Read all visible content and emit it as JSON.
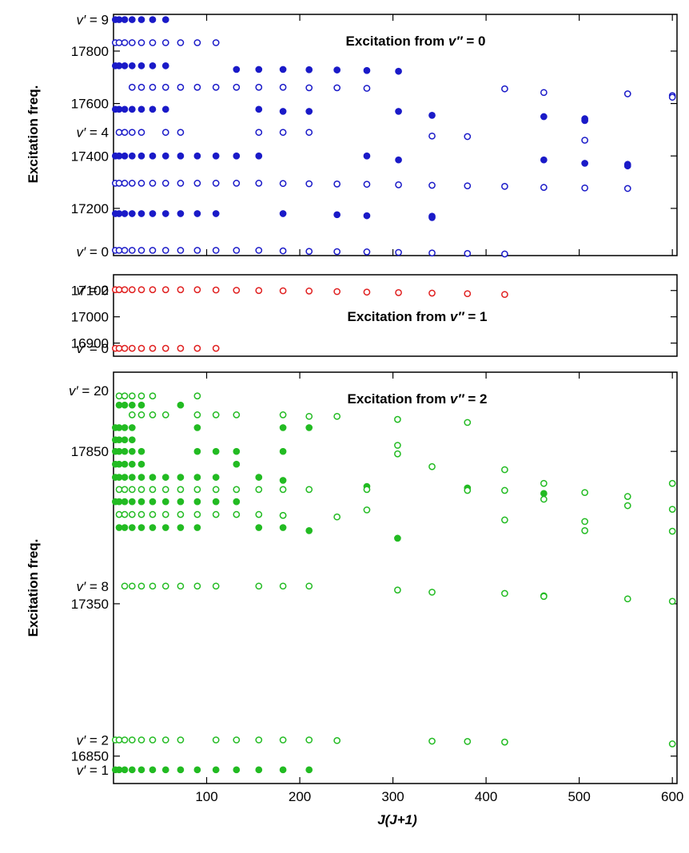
{
  "chart_data": [
    {
      "type": "scatter",
      "title": "Excitation from v″ = 0",
      "title_prefix": "Excitation from ",
      "title_var": "v″",
      "title_suffix": " = 0",
      "xlabel": "J(J+1)",
      "ylabel": "Excitation freq.",
      "xlim": [
        0,
        605
      ],
      "ylim": [
        17020,
        17940
      ],
      "yticks": [
        17200,
        17400,
        17600,
        17800
      ],
      "xticks": [
        100,
        200,
        300,
        400,
        500,
        600
      ],
      "color": "#1a1ac8",
      "level_labels": [
        {
          "text": "v′ = 9",
          "y": 17920
        },
        {
          "text": "v′ = 4",
          "y": 17490
        },
        {
          "text": "v′ = 0",
          "y": 17035
        }
      ],
      "series": [
        {
          "level": "v'=9",
          "filled": true,
          "y": 17920,
          "x": [
            2,
            6,
            12,
            20,
            30,
            42,
            56
          ]
        },
        {
          "level": "v'=8",
          "filled": false,
          "y": 17832,
          "x": [
            2,
            6,
            12,
            20,
            30,
            42,
            56,
            72,
            90,
            110
          ]
        },
        {
          "level": "v'=7",
          "filled": true,
          "y": [
            17744,
            17744,
            17744,
            17744,
            17744,
            17744,
            17744,
            17730,
            17730,
            17730,
            17729,
            17728,
            17726,
            17723
          ],
          "x": [
            2,
            6,
            12,
            20,
            30,
            42,
            56,
            132,
            156,
            182,
            210,
            240,
            272,
            306
          ]
        },
        {
          "level": "v'=6",
          "filled": false,
          "y": [
            17662,
            17662,
            17662,
            17662,
            17662,
            17662,
            17662,
            17662,
            17662,
            17662,
            17660,
            17660,
            17658,
            17656,
            17642,
            17637,
            17630,
            17624
          ],
          "x": [
            20,
            30,
            42,
            56,
            72,
            90,
            110,
            132,
            156,
            182,
            210,
            240,
            272,
            420,
            462,
            552,
            600,
            600
          ]
        },
        {
          "level": "v'=5",
          "filled": true,
          "y": [
            17578,
            17578,
            17578,
            17578,
            17578,
            17578,
            17578,
            17578,
            17570,
            17570,
            17570,
            17555,
            17550,
            17542,
            17535
          ],
          "x": [
            2,
            6,
            12,
            20,
            30,
            42,
            56,
            156,
            182,
            210,
            306,
            342,
            462,
            506,
            506
          ]
        },
        {
          "level": "v'=4",
          "filled": false,
          "y": [
            17490,
            17490,
            17490,
            17490,
            17490,
            17490,
            17490,
            17490,
            17490,
            17476,
            17474,
            17460
          ],
          "x": [
            6,
            12,
            20,
            30,
            56,
            72,
            156,
            182,
            210,
            342,
            380,
            506
          ]
        },
        {
          "level": "v'=3",
          "filled": true,
          "y": [
            17400,
            17400,
            17400,
            17400,
            17400,
            17400,
            17400,
            17400,
            17400,
            17400,
            17400,
            17400,
            17400,
            17385,
            17385,
            17372,
            17368,
            17362
          ],
          "x": [
            2,
            6,
            12,
            20,
            30,
            42,
            56,
            72,
            90,
            110,
            132,
            156,
            272,
            306,
            462,
            506,
            552,
            552
          ]
        },
        {
          "level": "v'=2",
          "filled": false,
          "y": [
            17296,
            17296,
            17296,
            17296,
            17296,
            17296,
            17296,
            17296,
            17296,
            17296,
            17296,
            17296,
            17295,
            17294,
            17293,
            17292,
            17290,
            17288,
            17286,
            17284,
            17280,
            17278,
            17276
          ],
          "x": [
            2,
            6,
            12,
            20,
            30,
            42,
            56,
            72,
            90,
            110,
            132,
            156,
            182,
            210,
            240,
            272,
            306,
            342,
            380,
            420,
            462,
            506,
            552
          ]
        },
        {
          "level": "v'=1",
          "filled": true,
          "y": [
            17180,
            17180,
            17180,
            17180,
            17180,
            17180,
            17180,
            17180,
            17180,
            17180,
            17180,
            17176,
            17172,
            17170,
            17165
          ],
          "x": [
            2,
            6,
            12,
            20,
            30,
            42,
            56,
            72,
            90,
            110,
            182,
            240,
            272,
            342,
            342
          ]
        },
        {
          "level": "v'=0",
          "filled": false,
          "y": [
            17040,
            17040,
            17040,
            17040,
            17040,
            17040,
            17040,
            17040,
            17040,
            17040,
            17040,
            17040,
            17038,
            17036,
            17035,
            17034,
            17032,
            17030,
            17028,
            17026
          ],
          "x": [
            2,
            6,
            12,
            20,
            30,
            42,
            56,
            72,
            90,
            110,
            132,
            156,
            182,
            210,
            240,
            272,
            306,
            342,
            380,
            420
          ]
        }
      ]
    },
    {
      "type": "scatter",
      "title": "Excitation from v″ = 1",
      "title_prefix": "Excitation from ",
      "title_var": "v″",
      "title_suffix": " = 1",
      "xlabel": "J(J+1)",
      "ylabel": "",
      "xlim": [
        0,
        605
      ],
      "ylim": [
        16850,
        17160
      ],
      "yticks": [
        16900,
        17000,
        17100
      ],
      "color": "#e02020",
      "level_labels": [
        {
          "text": "v′ = 2",
          "y": 17103
        },
        {
          "text": "v′ = 0",
          "y": 16880
        }
      ],
      "series": [
        {
          "level": "v'=2",
          "filled": false,
          "y": [
            17103,
            17103,
            17103,
            17103,
            17103,
            17103,
            17103,
            17103,
            17103,
            17102,
            17101,
            17100,
            17099,
            17098,
            17096,
            17094,
            17092,
            17090,
            17088,
            17085
          ],
          "x": [
            2,
            6,
            12,
            20,
            30,
            42,
            56,
            72,
            90,
            110,
            132,
            156,
            182,
            210,
            240,
            272,
            306,
            342,
            380,
            420
          ]
        },
        {
          "level": "v'=0",
          "filled": false,
          "y": 16880,
          "x": [
            2,
            6,
            12,
            20,
            30,
            42,
            56,
            72,
            90,
            110
          ]
        }
      ]
    },
    {
      "type": "scatter",
      "title": "Excitation from v″ = 2",
      "title_prefix": "Excitation from ",
      "title_var": "v″",
      "title_suffix": " = 2",
      "xlabel": "J(J+1)",
      "ylabel": "Excitation freq.",
      "xlim": [
        0,
        605
      ],
      "ylim": [
        16760,
        18110
      ],
      "yticks": [
        16850,
        17350,
        17850
      ],
      "xticks": [
        100,
        200,
        300,
        400,
        500,
        600
      ],
      "color": "#22bb22",
      "level_labels": [
        {
          "text": "v′ = 20",
          "y": 18050
        },
        {
          "text": "v′ = 8",
          "y": 17408
        },
        {
          "text": "v′ = 2",
          "y": 16903
        },
        {
          "text": "v′ = 1",
          "y": 16805
        }
      ],
      "series": [
        {
          "level": "v'=20",
          "filled": false,
          "y": [
            18032,
            18032,
            18032,
            18032,
            18032,
            18032
          ],
          "x": [
            6,
            12,
            20,
            30,
            42,
            90
          ]
        },
        {
          "level": "v'=19",
          "filled": true,
          "y": [
            18002,
            18002,
            18002,
            18002,
            18002
          ],
          "x": [
            6,
            12,
            20,
            30,
            72
          ]
        },
        {
          "level": "v'=18",
          "filled": false,
          "y": [
            17970,
            17970,
            17970,
            17970,
            17970,
            17970,
            17970,
            17970,
            17965,
            17965,
            17955,
            17945
          ],
          "x": [
            20,
            30,
            42,
            56,
            90,
            110,
            132,
            182,
            210,
            240,
            305,
            380
          ]
        },
        {
          "level": "v'=17",
          "filled": true,
          "y": [
            17928,
            17928,
            17928,
            17928,
            17928,
            17928,
            17928
          ],
          "x": [
            2,
            6,
            12,
            20,
            90,
            182,
            210
          ]
        },
        {
          "level": "v'=16",
          "filled": true,
          "y": [
            17888,
            17888,
            17888,
            17888
          ],
          "x": [
            2,
            6,
            12,
            20
          ]
        },
        {
          "level": "v'=15",
          "filled": true,
          "y": [
            17850,
            17850,
            17850,
            17850,
            17850,
            17850,
            17850,
            17850,
            17850
          ],
          "x": [
            2,
            6,
            12,
            20,
            30,
            90,
            110,
            132,
            182
          ]
        },
        {
          "level": "v'=14",
          "filled": true,
          "y": [
            17808,
            17808,
            17808,
            17808,
            17808,
            17808
          ],
          "x": [
            2,
            6,
            12,
            20,
            30,
            132
          ]
        },
        {
          "level": "v'=13",
          "filled": true,
          "y": [
            17765,
            17765,
            17765,
            17765,
            17765,
            17765,
            17765,
            17765,
            17765,
            17765,
            17765,
            17755,
            17735,
            17730,
            17712
          ],
          "x": [
            2,
            6,
            12,
            20,
            30,
            42,
            56,
            72,
            90,
            110,
            156,
            182,
            272,
            380,
            462
          ]
        },
        {
          "level": "v'=12",
          "filled": false,
          "y": [
            17725,
            17725,
            17725,
            17725,
            17725,
            17725,
            17725,
            17725,
            17725,
            17725,
            17725,
            17725,
            17725
          ],
          "x": [
            6,
            12,
            20,
            30,
            42,
            56,
            72,
            90,
            110,
            132,
            156,
            182,
            210
          ]
        },
        {
          "level": "v'=11",
          "filled": true,
          "y": [
            17685,
            17685,
            17685,
            17685,
            17685,
            17685,
            17685,
            17685,
            17685,
            17685,
            17685
          ],
          "x": [
            2,
            6,
            12,
            20,
            30,
            42,
            56,
            72,
            90,
            110,
            132
          ]
        },
        {
          "level": "v'=10",
          "filled": false,
          "y": [
            17643,
            17643,
            17643,
            17643,
            17643,
            17643,
            17643,
            17643,
            17643,
            17643,
            17643,
            17640,
            17635
          ],
          "x": [
            6,
            12,
            20,
            30,
            42,
            56,
            72,
            90,
            110,
            132,
            156,
            182,
            240
          ]
        },
        {
          "level": "v'=9",
          "filled": true,
          "y": [
            17600,
            17600,
            17600,
            17600,
            17600,
            17600,
            17600,
            17600,
            17600,
            17600,
            17590,
            17565
          ],
          "x": [
            6,
            12,
            20,
            30,
            42,
            56,
            72,
            90,
            156,
            182,
            210,
            305
          ]
        },
        {
          "level": "v'=8",
          "filled": false,
          "y": [
            17408,
            17408,
            17408,
            17408,
            17408,
            17408,
            17408,
            17408,
            17408,
            17408,
            17408,
            17395,
            17388,
            17384,
            17376,
            17374,
            17366,
            17358
          ],
          "x": [
            12,
            20,
            30,
            42,
            56,
            72,
            90,
            110,
            156,
            182,
            210,
            305,
            342,
            420,
            462,
            462,
            552,
            600
          ]
        },
        {
          "level": "extra-open",
          "filled": false,
          "y": [
            17870,
            17842,
            17800,
            17790,
            17745,
            17745,
            17725,
            17722,
            17722,
            17715,
            17702,
            17693,
            17672,
            17660,
            17658,
            17640,
            17625,
            17620,
            17590,
            17588
          ],
          "x": [
            305,
            305,
            342,
            420,
            462,
            600,
            272,
            380,
            420,
            506,
            552,
            462,
            552,
            600,
            272,
            182,
            420,
            506,
            506,
            600
          ]
        },
        {
          "level": "v'=2",
          "filled": false,
          "y": [
            16903,
            16903,
            16903,
            16903,
            16903,
            16903,
            16903,
            16903,
            16903,
            16903,
            16903,
            16903,
            16903,
            16901,
            16899,
            16898,
            16896,
            16890
          ],
          "x": [
            2,
            6,
            12,
            20,
            30,
            42,
            56,
            72,
            110,
            132,
            156,
            182,
            210,
            240,
            342,
            380,
            420,
            600
          ]
        },
        {
          "level": "v'=1",
          "filled": true,
          "y": 16805,
          "x": [
            2,
            6,
            12,
            20,
            30,
            42,
            56,
            72,
            90,
            110,
            132,
            156,
            182,
            210
          ]
        }
      ]
    }
  ]
}
